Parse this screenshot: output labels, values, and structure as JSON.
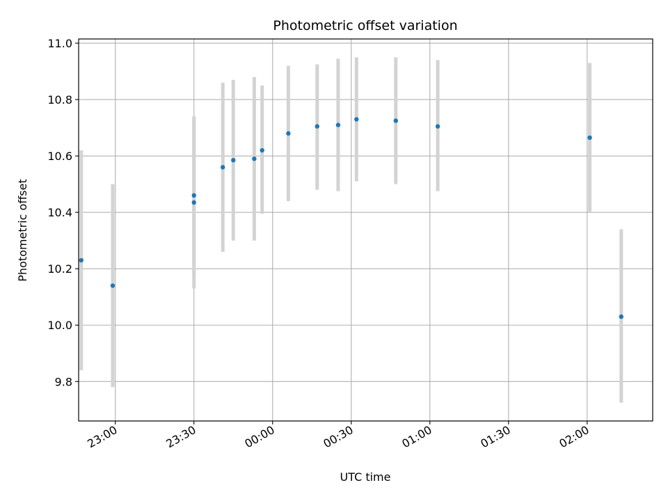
{
  "chart_data": {
    "type": "scatter",
    "title": "Photometric offset variation",
    "xlabel": "UTC time",
    "ylabel": "Photometric offset",
    "x_axis_kind": "time",
    "xlim": [
      "22:46",
      "02:25"
    ],
    "ylim": [
      9.66,
      11.015
    ],
    "grid": true,
    "x_ticks": [
      "23:00",
      "23:30",
      "00:00",
      "00:30",
      "01:00",
      "01:30",
      "02:00"
    ],
    "y_ticks": [
      "9.8",
      "10.0",
      "10.2",
      "10.4",
      "10.6",
      "10.8",
      "11.0"
    ],
    "marker_color": "#1f77b4",
    "errorbar_color": "#d3d3d3",
    "points": [
      {
        "x": "22:47",
        "y": 10.23,
        "ylow": 9.84,
        "yhigh": 10.62
      },
      {
        "x": "22:59",
        "y": 10.14,
        "ylow": 9.78,
        "yhigh": 10.5
      },
      {
        "x": "23:30",
        "y": 10.46,
        "ylow": 10.18,
        "yhigh": 10.74
      },
      {
        "x": "23:30",
        "y": 10.435,
        "ylow": 10.13,
        "yhigh": 10.74
      },
      {
        "x": "23:41",
        "y": 10.56,
        "ylow": 10.26,
        "yhigh": 10.86
      },
      {
        "x": "23:45",
        "y": 10.585,
        "ylow": 10.3,
        "yhigh": 10.87
      },
      {
        "x": "23:53",
        "y": 10.59,
        "ylow": 10.3,
        "yhigh": 10.88
      },
      {
        "x": "23:56",
        "y": 10.62,
        "ylow": 10.395,
        "yhigh": 10.85
      },
      {
        "x": "00:06",
        "y": 10.68,
        "ylow": 10.44,
        "yhigh": 10.92
      },
      {
        "x": "00:17",
        "y": 10.705,
        "ylow": 10.48,
        "yhigh": 10.925
      },
      {
        "x": "00:25",
        "y": 10.71,
        "ylow": 10.475,
        "yhigh": 10.945
      },
      {
        "x": "00:32",
        "y": 10.73,
        "ylow": 10.51,
        "yhigh": 10.95
      },
      {
        "x": "00:47",
        "y": 10.725,
        "ylow": 10.5,
        "yhigh": 10.95
      },
      {
        "x": "01:03",
        "y": 10.705,
        "ylow": 10.475,
        "yhigh": 10.94
      },
      {
        "x": "02:01",
        "y": 10.665,
        "ylow": 10.4,
        "yhigh": 10.93
      },
      {
        "x": "02:13",
        "y": 10.03,
        "ylow": 9.725,
        "yhigh": 10.34
      }
    ]
  }
}
